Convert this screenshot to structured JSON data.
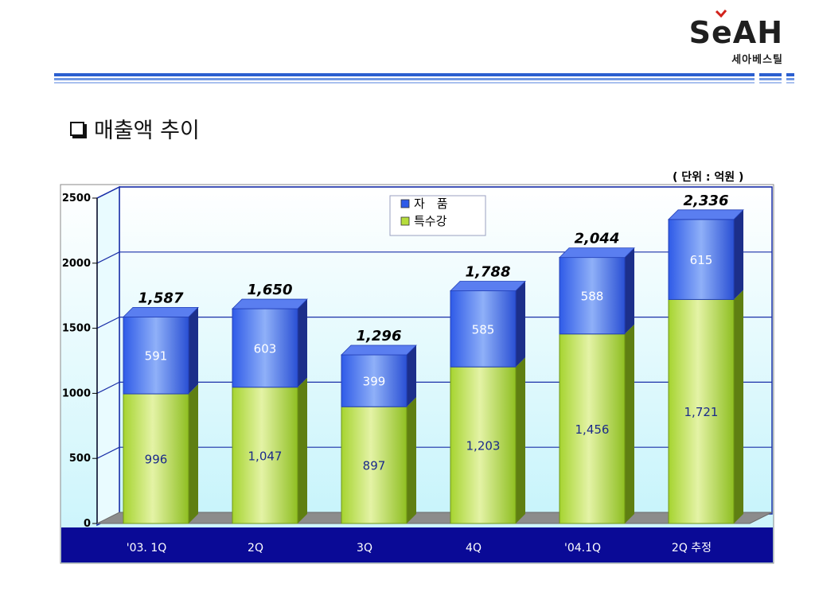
{
  "header": {
    "logo_main": "SeAH",
    "logo_sub": "세아베스틸"
  },
  "page": {
    "title": "매출액 추이",
    "unit_note": "( 단위 : 억원 )"
  },
  "colors": {
    "frame_blue": "#1a2fa8",
    "series_green": "#9ccc2c",
    "series_blue": "#2f5be8",
    "category_band": "#0a0a96"
  },
  "chart_data": {
    "type": "bar",
    "stacked": true,
    "categories": [
      "'03. 1Q",
      "2Q",
      "3Q",
      "4Q",
      "'04.1Q",
      "2Q 추정"
    ],
    "series": [
      {
        "name": "특수강",
        "values": [
          996,
          1047,
          897,
          1203,
          1456,
          1721
        ],
        "labels": [
          "996",
          "1,047",
          "897",
          "1,203",
          "1,456",
          "1,721"
        ]
      },
      {
        "name": "자　품",
        "values": [
          591,
          603,
          399,
          585,
          588,
          615
        ],
        "labels": [
          "591",
          "603",
          "399",
          "585",
          "588",
          "615"
        ]
      }
    ],
    "totals": [
      1587,
      1650,
      1296,
      1788,
      2044,
      2336
    ],
    "total_labels": [
      "1,587",
      "1,650",
      "1,296",
      "1,788",
      "2,044",
      "2,336"
    ],
    "yticks": [
      "0",
      "500",
      "1000",
      "1500",
      "2000",
      "2500"
    ],
    "ylim": [
      0,
      2500
    ],
    "grid": true,
    "legend_position": "top-center"
  }
}
